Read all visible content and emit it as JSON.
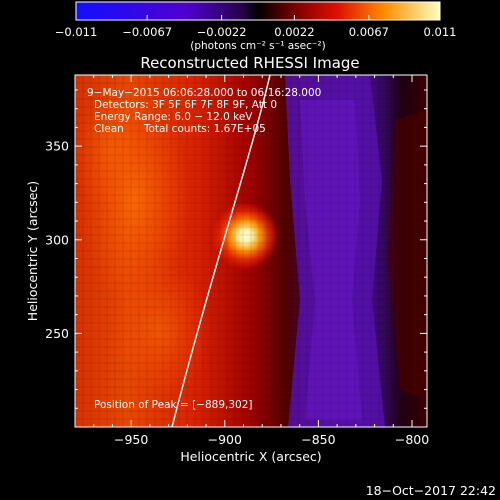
{
  "chart_data": {
    "type": "heatmap",
    "title": "Reconstructed RHESSI Image",
    "xlabel": "Heliocentric X (arcsec)",
    "ylabel": "Heliocentric Y (arcsec)",
    "xlim": [
      -980,
      -792
    ],
    "ylim": [
      200,
      388
    ],
    "x_ticks": [
      {
        "value": -950,
        "label": "−950"
      },
      {
        "value": -900,
        "label": "−900"
      },
      {
        "value": -850,
        "label": "−850"
      },
      {
        "value": -800,
        "label": "−800"
      }
    ],
    "y_ticks": [
      {
        "value": 250,
        "label": "250"
      },
      {
        "value": 300,
        "label": "300"
      },
      {
        "value": 350,
        "label": "350"
      }
    ],
    "peak": {
      "x": -889,
      "y": 302
    },
    "annotations": [
      "9−May−2015 06:06:28.000 to 06:16:28.000",
      "Detectors: 3F 5F 6F 7F 8F 9F, Att 0",
      "Energy Range: 6.0 − 12.0 keV",
      "Clean      Total counts: 1.67E+05"
    ],
    "peak_label": "Position of Peak = [−889,302]",
    "colorbar": {
      "range": [
        -0.011,
        0.011
      ],
      "ticks": [
        {
          "value": -0.011,
          "label": "−0.011"
        },
        {
          "value": -0.0067,
          "label": "−0.0067"
        },
        {
          "value": -0.0022,
          "label": "−0.0022"
        },
        {
          "value": 0.0022,
          "label": "0.0022"
        },
        {
          "value": 0.0067,
          "label": "0.0067"
        },
        {
          "value": 0.011,
          "label": "0.011"
        }
      ],
      "unit_label": "(photons cm⁻² s⁻¹ asec⁻²)"
    },
    "timestamp": "18−Oct−2017 22:42"
  }
}
